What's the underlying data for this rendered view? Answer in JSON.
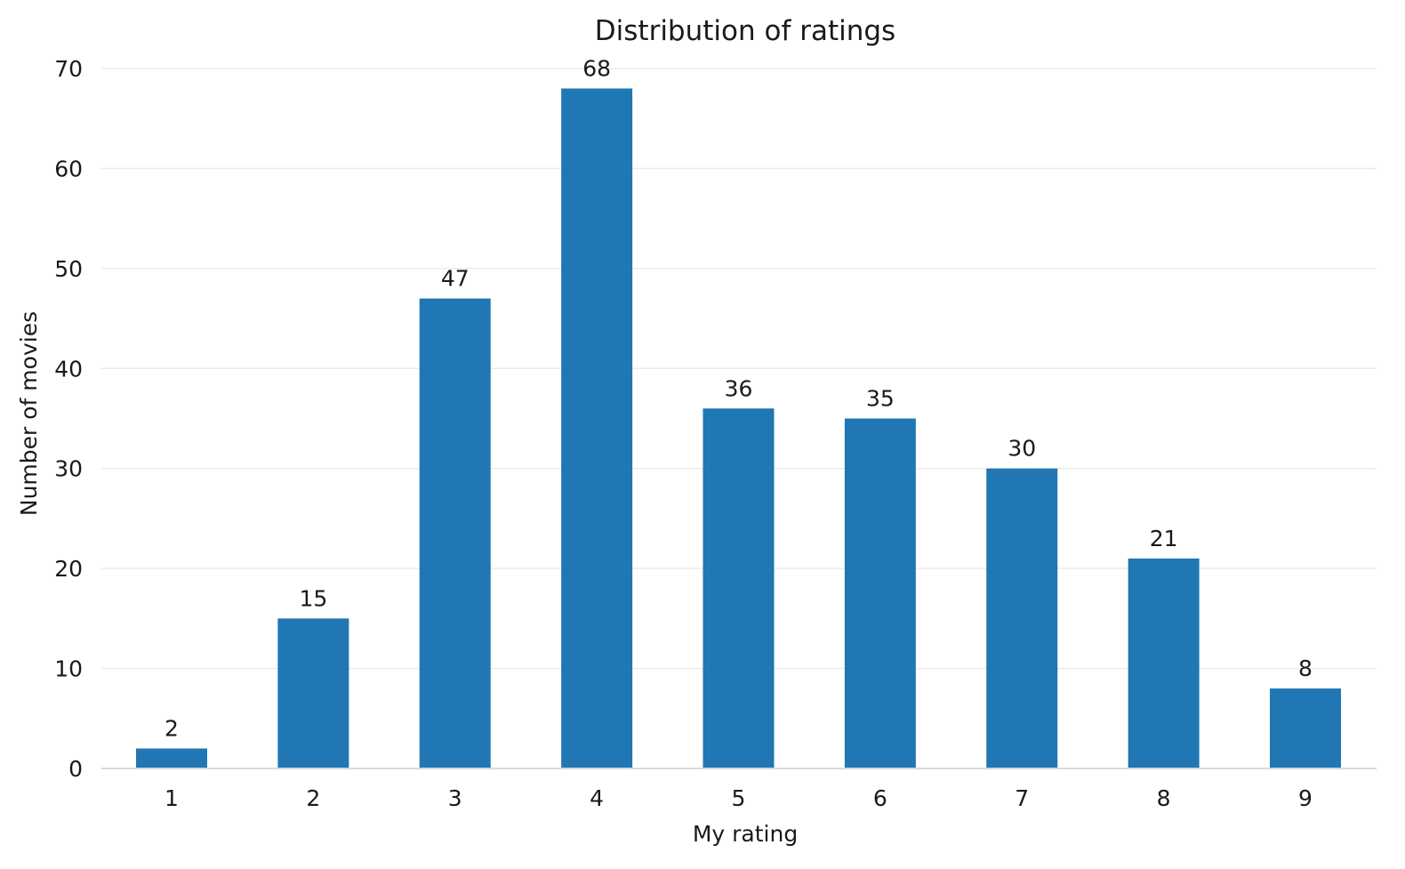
{
  "chart_data": {
    "type": "bar",
    "title": "Distribution of ratings",
    "xlabel": "My rating",
    "ylabel": "Number of movies",
    "categories": [
      "1",
      "2",
      "3",
      "4",
      "5",
      "6",
      "7",
      "8",
      "9"
    ],
    "values": [
      2,
      15,
      47,
      68,
      36,
      35,
      30,
      21,
      8
    ],
    "ylim": [
      0,
      70
    ],
    "yticks": [
      "0",
      "10",
      "20",
      "30",
      "40",
      "50",
      "60",
      "70"
    ],
    "grid": "horizontal",
    "data_labels": true,
    "colors": {
      "bar": "#2077b4"
    }
  }
}
